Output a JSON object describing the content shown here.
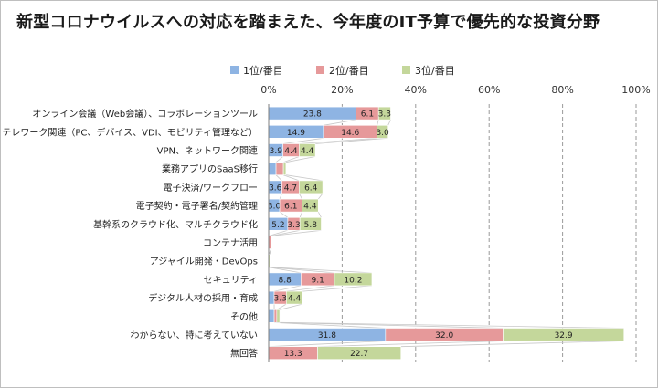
{
  "chart_data": {
    "type": "bar",
    "stacked": true,
    "orientation": "horizontal",
    "title": "新型コロナウイルスへの対応を踏まえた、今年度のIT予算で優先的な投資分野",
    "categories": [
      "オンライン会議（Web会議）、コラボレーションツール",
      "テレワーク関連（PC、デバイス、VDI、モビリティ管理など）",
      "VPN、ネットワーク関連",
      "業務アプリのSaaS移行",
      "電子決済/ワークフロー",
      "電子契約・電子署名/契約管理",
      "基幹系のクラウド化、マルチクラウド化",
      "コンテナ活用",
      "アジャイル開発・DevOps",
      "セキュリティ",
      "デジタル人材の採用・育成",
      "その他",
      "わからない、特に考えていない",
      "無回答"
    ],
    "series": [
      {
        "name": "1位/番目",
        "color": "#8eb4e3",
        "values": [
          23.8,
          14.9,
          3.9,
          2.0,
          3.6,
          3.0,
          5.2,
          0.0,
          0.0,
          8.8,
          1.5,
          1.5,
          31.8,
          0.0
        ],
        "labels": [
          "23.8",
          "14.9",
          "3.9",
          "",
          "3.6",
          "3.0",
          "5.2",
          "",
          "",
          "8.8",
          "",
          "",
          "31.8",
          ""
        ]
      },
      {
        "name": "2位/番目",
        "color": "#e6999a",
        "values": [
          6.1,
          14.6,
          4.4,
          2.0,
          4.7,
          6.1,
          3.3,
          0.7,
          0.0,
          9.1,
          3.3,
          0.7,
          32.0,
          13.3
        ],
        "labels": [
          "6.1",
          "14.6",
          "4.4",
          "",
          "4.7",
          "6.1",
          "3.3",
          "",
          "",
          "9.1",
          "3.3",
          "",
          "32.0",
          "13.3"
        ]
      },
      {
        "name": "3位/番目",
        "color": "#c4d79b",
        "values": [
          3.3,
          3.0,
          4.4,
          0.7,
          6.4,
          4.4,
          5.8,
          0.0,
          0.3,
          10.2,
          4.4,
          0.8,
          32.9,
          22.7
        ],
        "labels": [
          "3.3",
          "3.0",
          "4.4",
          "",
          "6.4",
          "4.4",
          "5.8",
          "",
          "",
          "10.2",
          "4.4",
          "",
          "32.9",
          "22.7"
        ]
      }
    ],
    "xlim": [
      0,
      100
    ],
    "x_ticks": [
      "0%",
      "20%",
      "40%",
      "60%",
      "80%",
      "100%"
    ],
    "grid": "vertical dashed",
    "legend_position": "top"
  }
}
